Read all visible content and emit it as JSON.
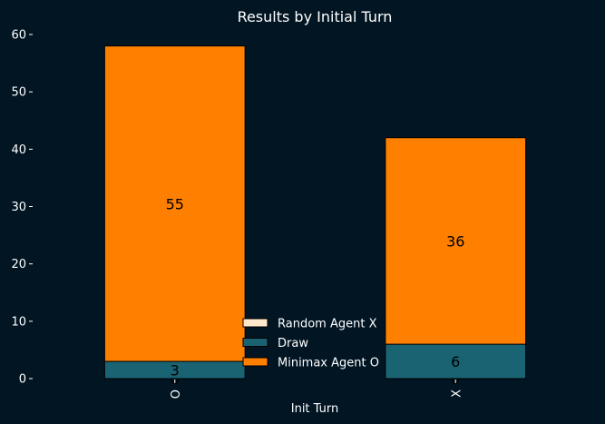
{
  "chart_data": {
    "type": "bar",
    "stacked": true,
    "title": "Results by Initial Turn",
    "xlabel": "Init Turn",
    "ylabel": "",
    "categories": [
      "O",
      "X"
    ],
    "ylim": [
      0,
      60
    ],
    "yticks": [
      0,
      10,
      20,
      30,
      40,
      50,
      60
    ],
    "grid": false,
    "legend_position": "bottom-center",
    "series": [
      {
        "name": "Random Agent X",
        "values": [
          0,
          0
        ],
        "color": "#ffe8cc"
      },
      {
        "name": "Draw",
        "values": [
          3,
          6
        ],
        "color": "#1a6373"
      },
      {
        "name": "Minimax Agent O",
        "values": [
          55,
          36
        ],
        "color": "#ff8000"
      }
    ]
  },
  "colors": {
    "background": "#011523",
    "text": "#ffffff",
    "bar_edge": "#000000"
  }
}
